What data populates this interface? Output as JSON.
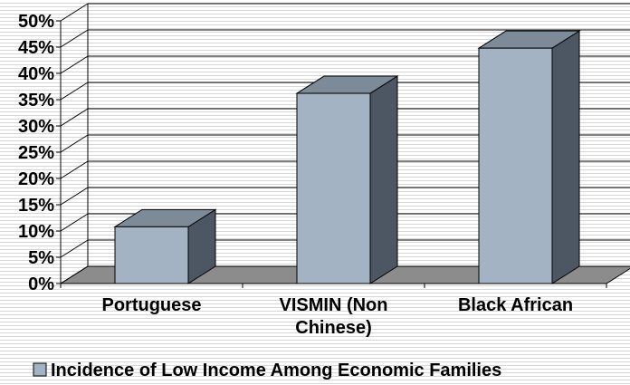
{
  "chart_data": {
    "type": "bar",
    "categories": [
      "Portuguese",
      "VISMIN (Non Chinese)",
      "Black African"
    ],
    "series": [
      {
        "name": "Incidence of Low Income Among Economic Families",
        "values": [
          10.8,
          36.2,
          44.8
        ]
      }
    ],
    "yticks": [
      "0%",
      "5%",
      "10%",
      "15%",
      "20%",
      "25%",
      "30%",
      "35%",
      "40%",
      "45%",
      "50%"
    ],
    "ylim": [
      0,
      50
    ],
    "grid": true,
    "three_d": true,
    "legend_position": "bottom",
    "colors": {
      "bar_front": "#a3b3c4",
      "bar_top": "#7d8b99",
      "bar_side": "#4d5763",
      "floor": "#8c8c8c",
      "grid": "#000000"
    }
  }
}
